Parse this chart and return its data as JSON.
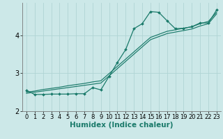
{
  "title": "",
  "xlabel": "Humidex (Indice chaleur)",
  "background_color": "#cce8e8",
  "line_color": "#1a7a6a",
  "x": [
    0,
    1,
    2,
    3,
    4,
    5,
    6,
    7,
    8,
    9,
    10,
    11,
    12,
    13,
    14,
    15,
    16,
    17,
    18,
    19,
    20,
    21,
    22,
    23
  ],
  "y_main": [
    2.55,
    2.44,
    2.44,
    2.45,
    2.45,
    2.45,
    2.46,
    2.46,
    2.62,
    2.56,
    2.92,
    3.28,
    3.62,
    4.17,
    4.3,
    4.62,
    4.6,
    4.38,
    4.17,
    4.18,
    4.22,
    4.32,
    4.32,
    4.66
  ],
  "y_trend1": [
    2.5,
    2.53,
    2.57,
    2.6,
    2.63,
    2.67,
    2.7,
    2.73,
    2.77,
    2.8,
    2.99,
    3.18,
    3.37,
    3.56,
    3.75,
    3.94,
    4.02,
    4.1,
    4.14,
    4.18,
    4.22,
    4.3,
    4.36,
    4.6
  ],
  "y_trend2": [
    2.47,
    2.5,
    2.53,
    2.56,
    2.59,
    2.62,
    2.65,
    2.68,
    2.71,
    2.74,
    2.93,
    3.12,
    3.31,
    3.5,
    3.69,
    3.88,
    3.96,
    4.04,
    4.08,
    4.12,
    4.16,
    4.24,
    4.3,
    4.56
  ],
  "xlim": [
    -0.5,
    23.5
  ],
  "ylim": [
    2.0,
    4.85
  ],
  "yticks": [
    2,
    3,
    4
  ],
  "xticks": [
    0,
    1,
    2,
    3,
    4,
    5,
    6,
    7,
    8,
    9,
    10,
    11,
    12,
    13,
    14,
    15,
    16,
    17,
    18,
    19,
    20,
    21,
    22,
    23
  ],
  "grid_color": "#b0d4d4",
  "xlabel_color": "#1a7a6a",
  "xlabel_fontsize": 7.5,
  "tick_fontsize": 6.0
}
